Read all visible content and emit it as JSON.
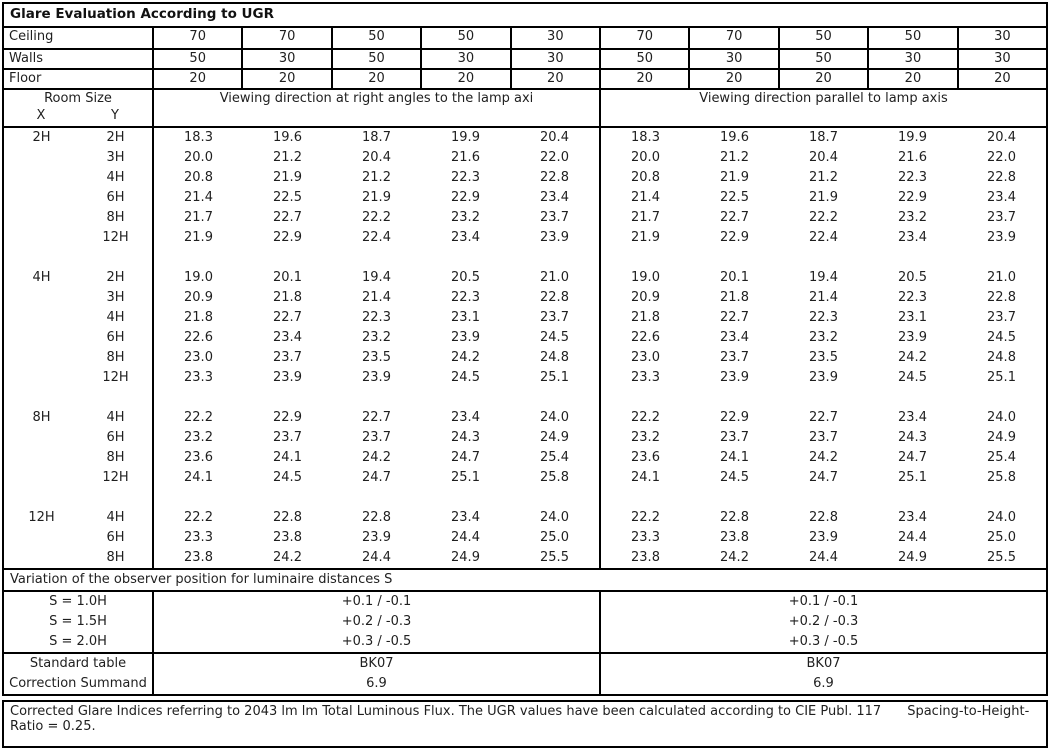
{
  "title": "Glare Evaluation According to UGR",
  "surface_rows": [
    {
      "label": "Ceiling",
      "values": [
        "70",
        "70",
        "50",
        "50",
        "30",
        "70",
        "70",
        "50",
        "50",
        "30"
      ]
    },
    {
      "label": "Walls",
      "values": [
        "50",
        "30",
        "50",
        "30",
        "30",
        "50",
        "30",
        "50",
        "30",
        "30"
      ]
    },
    {
      "label": "Floor",
      "values": [
        "20",
        "20",
        "20",
        "20",
        "20",
        "20",
        "20",
        "20",
        "20",
        "20"
      ]
    }
  ],
  "header": {
    "room_size": "Room Size",
    "x_label": "X",
    "y_label": "Y",
    "left_heading": "Viewing direction at right angles to the lamp axi",
    "right_heading": "Viewing direction parallel to lamp axis"
  },
  "ugr_blocks": [
    {
      "x": "2H",
      "rows": [
        {
          "y": "2H",
          "values": [
            "18.3",
            "19.6",
            "18.7",
            "19.9",
            "20.4",
            "18.3",
            "19.6",
            "18.7",
            "19.9",
            "20.4"
          ]
        },
        {
          "y": "3H",
          "values": [
            "20.0",
            "21.2",
            "20.4",
            "21.6",
            "22.0",
            "20.0",
            "21.2",
            "20.4",
            "21.6",
            "22.0"
          ]
        },
        {
          "y": "4H",
          "values": [
            "20.8",
            "21.9",
            "21.2",
            "22.3",
            "22.8",
            "20.8",
            "21.9",
            "21.2",
            "22.3",
            "22.8"
          ]
        },
        {
          "y": "6H",
          "values": [
            "21.4",
            "22.5",
            "21.9",
            "22.9",
            "23.4",
            "21.4",
            "22.5",
            "21.9",
            "22.9",
            "23.4"
          ]
        },
        {
          "y": "8H",
          "values": [
            "21.7",
            "22.7",
            "22.2",
            "23.2",
            "23.7",
            "21.7",
            "22.7",
            "22.2",
            "23.2",
            "23.7"
          ]
        },
        {
          "y": "12H",
          "values": [
            "21.9",
            "22.9",
            "22.4",
            "23.4",
            "23.9",
            "21.9",
            "22.9",
            "22.4",
            "23.4",
            "23.9"
          ]
        }
      ]
    },
    {
      "x": "4H",
      "rows": [
        {
          "y": "2H",
          "values": [
            "19.0",
            "20.1",
            "19.4",
            "20.5",
            "21.0",
            "19.0",
            "20.1",
            "19.4",
            "20.5",
            "21.0"
          ]
        },
        {
          "y": "3H",
          "values": [
            "20.9",
            "21.8",
            "21.4",
            "22.3",
            "22.8",
            "20.9",
            "21.8",
            "21.4",
            "22.3",
            "22.8"
          ]
        },
        {
          "y": "4H",
          "values": [
            "21.8",
            "22.7",
            "22.3",
            "23.1",
            "23.7",
            "21.8",
            "22.7",
            "22.3",
            "23.1",
            "23.7"
          ]
        },
        {
          "y": "6H",
          "values": [
            "22.6",
            "23.4",
            "23.2",
            "23.9",
            "24.5",
            "22.6",
            "23.4",
            "23.2",
            "23.9",
            "24.5"
          ]
        },
        {
          "y": "8H",
          "values": [
            "23.0",
            "23.7",
            "23.5",
            "24.2",
            "24.8",
            "23.0",
            "23.7",
            "23.5",
            "24.2",
            "24.8"
          ]
        },
        {
          "y": "12H",
          "values": [
            "23.3",
            "23.9",
            "23.9",
            "24.5",
            "25.1",
            "23.3",
            "23.9",
            "23.9",
            "24.5",
            "25.1"
          ]
        }
      ]
    },
    {
      "x": "8H",
      "rows": [
        {
          "y": "4H",
          "values": [
            "22.2",
            "22.9",
            "22.7",
            "23.4",
            "24.0",
            "22.2",
            "22.9",
            "22.7",
            "23.4",
            "24.0"
          ]
        },
        {
          "y": "6H",
          "values": [
            "23.2",
            "23.7",
            "23.7",
            "24.3",
            "24.9",
            "23.2",
            "23.7",
            "23.7",
            "24.3",
            "24.9"
          ]
        },
        {
          "y": "8H",
          "values": [
            "23.6",
            "24.1",
            "24.2",
            "24.7",
            "25.4",
            "23.6",
            "24.1",
            "24.2",
            "24.7",
            "25.4"
          ]
        },
        {
          "y": "12H",
          "values": [
            "24.1",
            "24.5",
            "24.7",
            "25.1",
            "25.8",
            "24.1",
            "24.5",
            "24.7",
            "25.1",
            "25.8"
          ]
        }
      ]
    },
    {
      "x": "12H",
      "rows": [
        {
          "y": "4H",
          "values": [
            "22.2",
            "22.8",
            "22.8",
            "23.4",
            "24.0",
            "22.2",
            "22.8",
            "22.8",
            "23.4",
            "24.0"
          ]
        },
        {
          "y": "6H",
          "values": [
            "23.3",
            "23.8",
            "23.9",
            "24.4",
            "25.0",
            "23.3",
            "23.8",
            "23.9",
            "24.4",
            "25.0"
          ]
        },
        {
          "y": "8H",
          "values": [
            "23.8",
            "24.2",
            "24.4",
            "24.9",
            "25.5",
            "23.8",
            "24.2",
            "24.4",
            "24.9",
            "25.5"
          ]
        }
      ]
    }
  ],
  "variation": {
    "heading": "Variation of the observer position for luminaire distances S",
    "rows": [
      {
        "label": "S = 1.0H",
        "left": "+0.1 / -0.1",
        "right": "+0.1 / -0.1"
      },
      {
        "label": "S = 1.5H",
        "left": "+0.2 / -0.3",
        "right": "+0.2 / -0.3"
      },
      {
        "label": "S = 2.0H",
        "left": "+0.3 / -0.5",
        "right": "+0.3 / -0.5"
      }
    ]
  },
  "summary_rows": [
    {
      "label": "Standard table",
      "left": "BK07",
      "right": "BK07"
    },
    {
      "label": "Correction Summand",
      "left": "6.9",
      "right": "6.9"
    }
  ],
  "footer": {
    "flux_note": "Corrected Glare Indices referring to 2043 lm lm Total Luminous Flux. The UGR values have been calculated according to CIE Publ. 117",
    "shr_note": "Spacing-to-Height-Ratio = 0.25."
  },
  "colors": {
    "border": "#000000",
    "text": "#1f1f1f",
    "background": "#ffffff"
  }
}
